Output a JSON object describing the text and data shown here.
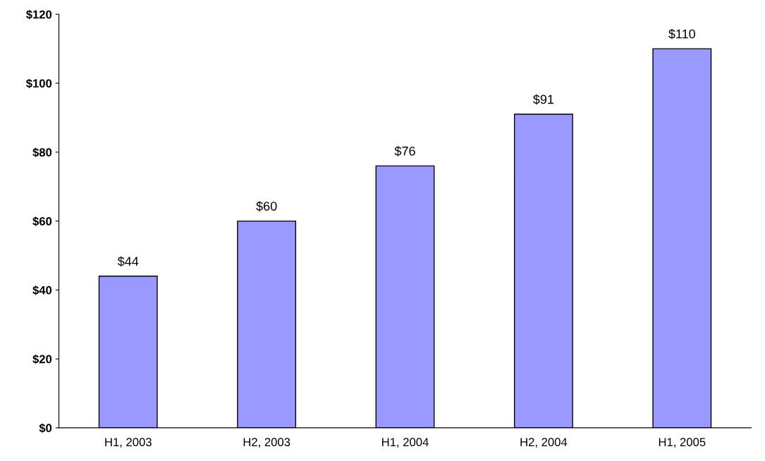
{
  "chart_data": {
    "type": "bar",
    "categories": [
      "H1, 2003",
      "H2, 2003",
      "H1, 2004",
      "H2, 2004",
      "H1, 2005"
    ],
    "values": [
      44,
      60,
      76,
      91,
      110
    ],
    "value_labels": [
      "$44",
      "$60",
      "$76",
      "$91",
      "$110"
    ],
    "color": "#9999ff",
    "ylim": [
      0,
      120
    ],
    "yticks": [
      {
        "value": 0,
        "label": "$0"
      },
      {
        "value": 20,
        "label": "$20"
      },
      {
        "value": 40,
        "label": "$40"
      },
      {
        "value": 60,
        "label": "$60"
      },
      {
        "value": 80,
        "label": "$80"
      },
      {
        "value": 100,
        "label": "$100"
      },
      {
        "value": 120,
        "label": "$120"
      }
    ],
    "grid": false
  }
}
